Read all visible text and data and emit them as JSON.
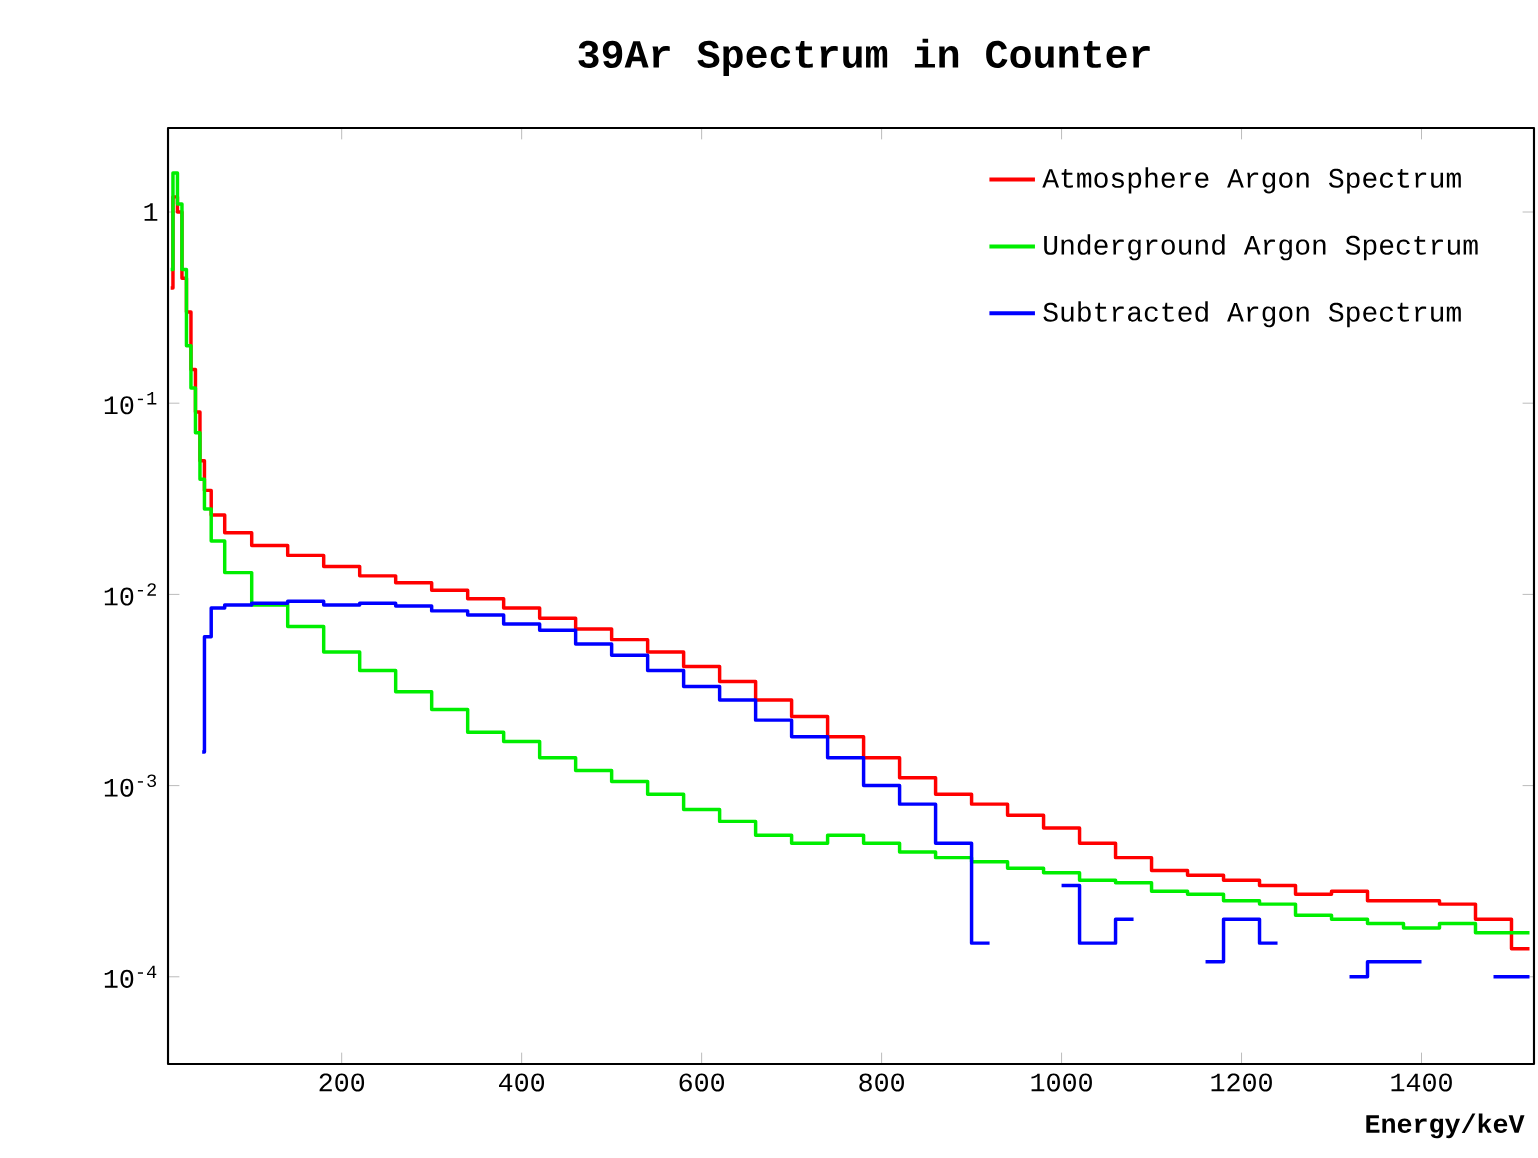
{
  "chart_data": {
    "type": "step",
    "title": "39Ar Spectrum in Counter",
    "xlabel": "Energy/keV",
    "x": [
      10,
      15,
      20,
      25,
      30,
      35,
      40,
      45,
      50,
      60,
      80,
      120,
      160,
      200,
      240,
      280,
      320,
      360,
      400,
      440,
      480,
      520,
      560,
      600,
      640,
      680,
      720,
      760,
      800,
      840,
      880,
      920,
      960,
      1000,
      1040,
      1080,
      1120,
      1160,
      1200,
      1240,
      1280,
      1320,
      1360,
      1400,
      1440,
      1480,
      1520
    ],
    "series": [
      {
        "name": "Atmosphere Argon Spectrum",
        "color": "#ff0000",
        "values": [
          0.4,
          1.2,
          1.0,
          0.45,
          0.3,
          0.15,
          0.09,
          0.05,
          0.035,
          0.026,
          0.021,
          0.018,
          0.016,
          0.014,
          0.0125,
          0.0115,
          0.0105,
          0.0095,
          0.0085,
          0.0075,
          0.0066,
          0.0058,
          0.005,
          0.0042,
          0.0035,
          0.0028,
          0.0023,
          0.0018,
          0.0014,
          0.0011,
          0.0009,
          0.0008,
          0.0007,
          0.0006,
          0.0005,
          0.00042,
          0.00036,
          0.00034,
          0.00032,
          0.0003,
          0.00027,
          0.00028,
          0.00025,
          0.00025,
          0.00024,
          0.0002,
          0.00014
        ]
      },
      {
        "name": "Underground Argon Spectrum",
        "color": "#00ee00",
        "values": [
          0.5,
          1.6,
          1.1,
          0.5,
          0.2,
          0.12,
          0.07,
          0.04,
          0.028,
          0.019,
          0.013,
          0.0088,
          0.0068,
          0.005,
          0.004,
          0.0031,
          0.0025,
          0.0019,
          0.0017,
          0.0014,
          0.0012,
          0.00105,
          0.0009,
          0.00075,
          0.00065,
          0.00055,
          0.0005,
          0.00055,
          0.0005,
          0.00045,
          0.00042,
          0.0004,
          0.00037,
          0.00035,
          0.00032,
          0.00031,
          0.00028,
          0.00027,
          0.00025,
          0.00024,
          0.00021,
          0.0002,
          0.00019,
          0.00018,
          0.00019,
          0.00017,
          0.00017
        ]
      },
      {
        "name": "Subtracted Argon Spectrum",
        "color": "#0000ff",
        "values": [
          null,
          null,
          null,
          null,
          null,
          null,
          null,
          0.0015,
          0.006,
          0.0085,
          0.0088,
          0.009,
          0.0092,
          0.0088,
          0.009,
          0.0087,
          0.0082,
          0.0078,
          0.007,
          0.0065,
          0.0055,
          0.0048,
          0.004,
          0.0033,
          0.0028,
          0.0022,
          0.0018,
          0.0014,
          0.001,
          0.0008,
          0.0005,
          0.00015,
          null,
          0.0003,
          0.00015,
          0.0002,
          null,
          0.00012,
          0.0002,
          0.00015,
          null,
          0.0001,
          0.00012,
          0.00012,
          null,
          0.0001,
          0.0001
        ]
      }
    ],
    "xlim": [
      7,
      1525
    ],
    "ylim": [
      3.5e-05,
      2.75
    ],
    "log": "y",
    "xticks": [
      200,
      400,
      600,
      800,
      1000,
      1200,
      1400
    ],
    "yticks": [
      {
        "value": 0.0001,
        "label": "10$^{-4}$"
      },
      {
        "value": 0.001,
        "label": "10$^{-3}$"
      },
      {
        "value": 0.01,
        "label": "10$^{-2}$"
      },
      {
        "value": 0.1,
        "label": "10$^{-1}$"
      },
      {
        "value": 1,
        "label": "1"
      }
    ],
    "legend": "top right",
    "grid": false,
    "marker": "none",
    "line_style": "solid"
  }
}
